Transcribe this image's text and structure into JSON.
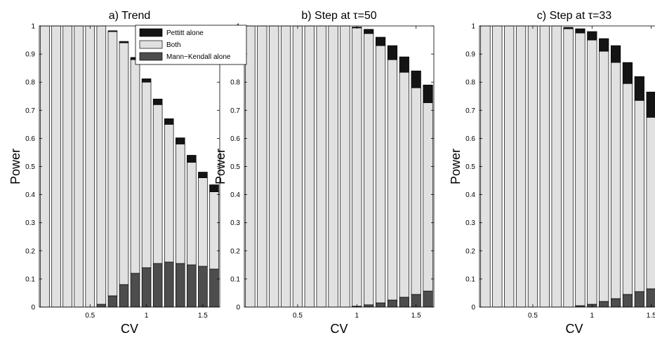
{
  "figure": {
    "legend": [
      {
        "key": "pettitt",
        "label": "Pettitt alone",
        "color": "#141414"
      },
      {
        "key": "both",
        "label": "Both",
        "color": "#e1e1e1"
      },
      {
        "key": "mk",
        "label": "Mann−Kendall alone",
        "color": "#4d4d4d"
      }
    ]
  },
  "chart_data": [
    {
      "type": "bar",
      "stacked": true,
      "title": "a) Trend",
      "xlabel": "CV",
      "ylabel": "Power",
      "xlim": [
        0.05,
        1.65
      ],
      "ylim": [
        0,
        1
      ],
      "xticks": [
        0.5,
        1,
        1.5
      ],
      "xtick_labels": [
        "0.5",
        "1",
        "1.5"
      ],
      "yticks": [
        0,
        0.1,
        0.2,
        0.3,
        0.4,
        0.5,
        0.6,
        0.7,
        0.8,
        0.9,
        1
      ],
      "ytick_labels": [
        "0",
        "0.1",
        "0.2",
        "0.3",
        "0.4",
        "0.5",
        "0.6",
        "0.7",
        "0.8",
        "0.9",
        "1"
      ],
      "legend_position": "top-right",
      "x": [
        0.1,
        0.2,
        0.3,
        0.4,
        0.5,
        0.6,
        0.7,
        0.8,
        0.9,
        1.0,
        1.1,
        1.2,
        1.3,
        1.4,
        1.5,
        1.6
      ],
      "series": [
        {
          "key": "mk",
          "name": "Mann−Kendall alone",
          "values": [
            0,
            0,
            0,
            0,
            0,
            0.01,
            0.04,
            0.08,
            0.12,
            0.14,
            0.155,
            0.16,
            0.155,
            0.15,
            0.145,
            0.135
          ]
        },
        {
          "key": "both",
          "name": "Both",
          "values": [
            1.0,
            1.0,
            1.0,
            1.0,
            1.0,
            0.99,
            0.94,
            0.86,
            0.76,
            0.66,
            0.565,
            0.49,
            0.425,
            0.365,
            0.315,
            0.275
          ]
        },
        {
          "key": "pettitt",
          "name": "Pettitt alone",
          "values": [
            0,
            0,
            0,
            0,
            0,
            0,
            0.003,
            0.005,
            0.008,
            0.012,
            0.02,
            0.02,
            0.022,
            0.025,
            0.02,
            0.025
          ]
        }
      ]
    },
    {
      "type": "bar",
      "stacked": true,
      "title": "b) Step at τ=50",
      "xlabel": "CV",
      "ylabel": "Power",
      "xlim": [
        0.05,
        1.65
      ],
      "ylim": [
        0,
        1
      ],
      "xticks": [
        0.5,
        1,
        1.5
      ],
      "xtick_labels": [
        "0.5",
        "1",
        "1.5"
      ],
      "yticks": [
        0,
        0.1,
        0.2,
        0.3,
        0.4,
        0.5,
        0.6,
        0.7,
        0.8,
        0.9,
        1
      ],
      "ytick_labels": [
        "0",
        "0.1",
        "0.2",
        "0.3",
        "0.4",
        "0.5",
        "0.6",
        "0.7",
        "0.8",
        "0.9",
        "1"
      ],
      "x": [
        0.1,
        0.2,
        0.3,
        0.4,
        0.5,
        0.6,
        0.7,
        0.8,
        0.9,
        1.0,
        1.1,
        1.2,
        1.3,
        1.4,
        1.5,
        1.6
      ],
      "series": [
        {
          "key": "mk",
          "name": "Mann−Kendall alone",
          "values": [
            0,
            0,
            0,
            0,
            0,
            0,
            0,
            0,
            0,
            0.003,
            0.008,
            0.015,
            0.025,
            0.035,
            0.045,
            0.057
          ]
        },
        {
          "key": "both",
          "name": "Both",
          "values": [
            1.0,
            1.0,
            1.0,
            1.0,
            1.0,
            1.0,
            1.0,
            1.0,
            1.0,
            0.99,
            0.965,
            0.915,
            0.855,
            0.8,
            0.735,
            0.67
          ]
        },
        {
          "key": "pettitt",
          "name": "Pettitt alone",
          "values": [
            0,
            0,
            0,
            0,
            0,
            0,
            0,
            0,
            0,
            0.003,
            0.015,
            0.03,
            0.05,
            0.055,
            0.06,
            0.063
          ]
        }
      ]
    },
    {
      "type": "bar",
      "stacked": true,
      "title": "c) Step at τ=33",
      "xlabel": "CV",
      "ylabel": "Power",
      "xlim": [
        0.05,
        1.65
      ],
      "ylim": [
        0,
        1
      ],
      "xticks": [
        0.5,
        1,
        1.5
      ],
      "xtick_labels": [
        "0.5",
        "1",
        "1.5"
      ],
      "yticks": [
        0,
        0.1,
        0.2,
        0.3,
        0.4,
        0.5,
        0.6,
        0.7,
        0.8,
        0.9,
        1
      ],
      "ytick_labels": [
        "0",
        "0.1",
        "0.2",
        "0.3",
        "0.4",
        "0.5",
        "0.6",
        "0.7",
        "0.8",
        "0.9",
        "1"
      ],
      "x": [
        0.1,
        0.2,
        0.3,
        0.4,
        0.5,
        0.6,
        0.7,
        0.8,
        0.9,
        1.0,
        1.1,
        1.2,
        1.3,
        1.4,
        1.5,
        1.6
      ],
      "series": [
        {
          "key": "mk",
          "name": "Mann−Kendall alone",
          "values": [
            0,
            0,
            0,
            0,
            0,
            0,
            0,
            0,
            0.005,
            0.01,
            0.02,
            0.03,
            0.045,
            0.055,
            0.065,
            0.075
          ]
        },
        {
          "key": "both",
          "name": "Both",
          "values": [
            1.0,
            1.0,
            1.0,
            1.0,
            1.0,
            1.0,
            1.0,
            0.99,
            0.97,
            0.94,
            0.89,
            0.84,
            0.75,
            0.68,
            0.61,
            0.545
          ]
        },
        {
          "key": "pettitt",
          "name": "Pettitt alone",
          "values": [
            0,
            0,
            0,
            0,
            0,
            0,
            0,
            0.005,
            0.015,
            0.03,
            0.045,
            0.06,
            0.075,
            0.085,
            0.09,
            0.085
          ]
        }
      ]
    }
  ]
}
